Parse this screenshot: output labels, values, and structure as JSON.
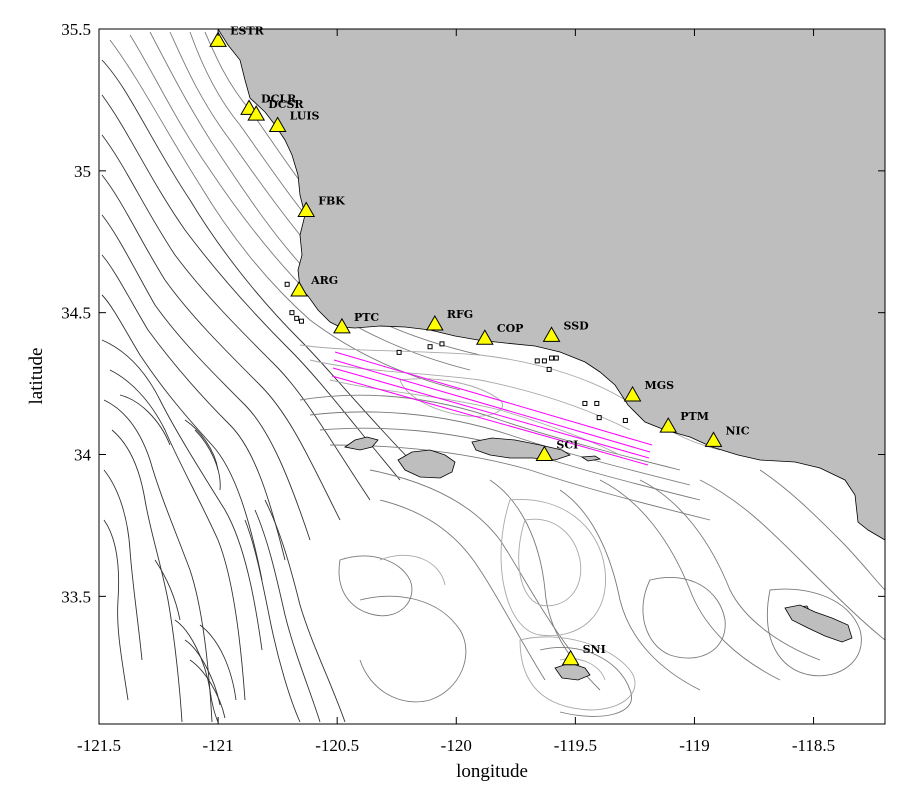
{
  "map": {
    "xlabel": "longitude",
    "ylabel": "latitude",
    "xlim": [
      -121.5,
      -118.2
    ],
    "ylim": [
      33.05,
      35.5
    ],
    "x_ticks": [
      {
        "value": -121.5,
        "label": "-121.5"
      },
      {
        "value": -121,
        "label": "-121"
      },
      {
        "value": -120.5,
        "label": "-120.5"
      },
      {
        "value": -120,
        "label": "-120"
      },
      {
        "value": -119.5,
        "label": "-119.5"
      },
      {
        "value": -119,
        "label": "-119"
      },
      {
        "value": -118.5,
        "label": "-118.5"
      }
    ],
    "y_ticks": [
      {
        "value": 33.5,
        "label": "33.5"
      },
      {
        "value": 34,
        "label": "34"
      },
      {
        "value": 34.5,
        "label": "34.5"
      },
      {
        "value": 35,
        "label": "35"
      },
      {
        "value": 35.5,
        "label": "35.5"
      }
    ],
    "colors": {
      "land": "#bebebe",
      "station_marker": "#ffff00",
      "track_lines": "#ff00ff",
      "deep_contours": "#222222",
      "shallow_contours": "#8c8c8c"
    },
    "stations": [
      {
        "name": "ESTR",
        "lon": -121.0,
        "lat": 35.46
      },
      {
        "name": "DCLR",
        "lon": -120.87,
        "lat": 35.22
      },
      {
        "name": "DCSR",
        "lon": -120.84,
        "lat": 35.2
      },
      {
        "name": "LUIS",
        "lon": -120.75,
        "lat": 35.16
      },
      {
        "name": "FBK",
        "lon": -120.63,
        "lat": 34.86
      },
      {
        "name": "ARG",
        "lon": -120.66,
        "lat": 34.58
      },
      {
        "name": "PTC",
        "lon": -120.48,
        "lat": 34.45
      },
      {
        "name": "RFG",
        "lon": -120.09,
        "lat": 34.46
      },
      {
        "name": "COP",
        "lon": -119.88,
        "lat": 34.41
      },
      {
        "name": "SSD",
        "lon": -119.6,
        "lat": 34.42
      },
      {
        "name": "MGS",
        "lon": -119.26,
        "lat": 34.21
      },
      {
        "name": "PTM",
        "lon": -119.11,
        "lat": 34.1
      },
      {
        "name": "NIC",
        "lon": -118.92,
        "lat": 34.05
      },
      {
        "name": "SCI",
        "lon": -119.63,
        "lat": 34.0
      },
      {
        "name": "SNI",
        "lon": -119.52,
        "lat": 33.28
      }
    ],
    "moorings": [
      {
        "lon": -120.71,
        "lat": 34.6
      },
      {
        "lon": -120.69,
        "lat": 34.5
      },
      {
        "lon": -120.67,
        "lat": 34.48
      },
      {
        "lon": -120.65,
        "lat": 34.47
      },
      {
        "lon": -120.24,
        "lat": 34.36
      },
      {
        "lon": -120.11,
        "lat": 34.38
      },
      {
        "lon": -120.06,
        "lat": 34.39
      },
      {
        "lon": -119.66,
        "lat": 34.33
      },
      {
        "lon": -119.63,
        "lat": 34.33
      },
      {
        "lon": -119.6,
        "lat": 34.34
      },
      {
        "lon": -119.58,
        "lat": 34.34
      },
      {
        "lon": -119.61,
        "lat": 34.3
      },
      {
        "lon": -119.46,
        "lat": 34.18
      },
      {
        "lon": -119.41,
        "lat": 34.18
      },
      {
        "lon": -119.4,
        "lat": 34.13
      },
      {
        "lon": -119.29,
        "lat": 34.12
      }
    ]
  }
}
